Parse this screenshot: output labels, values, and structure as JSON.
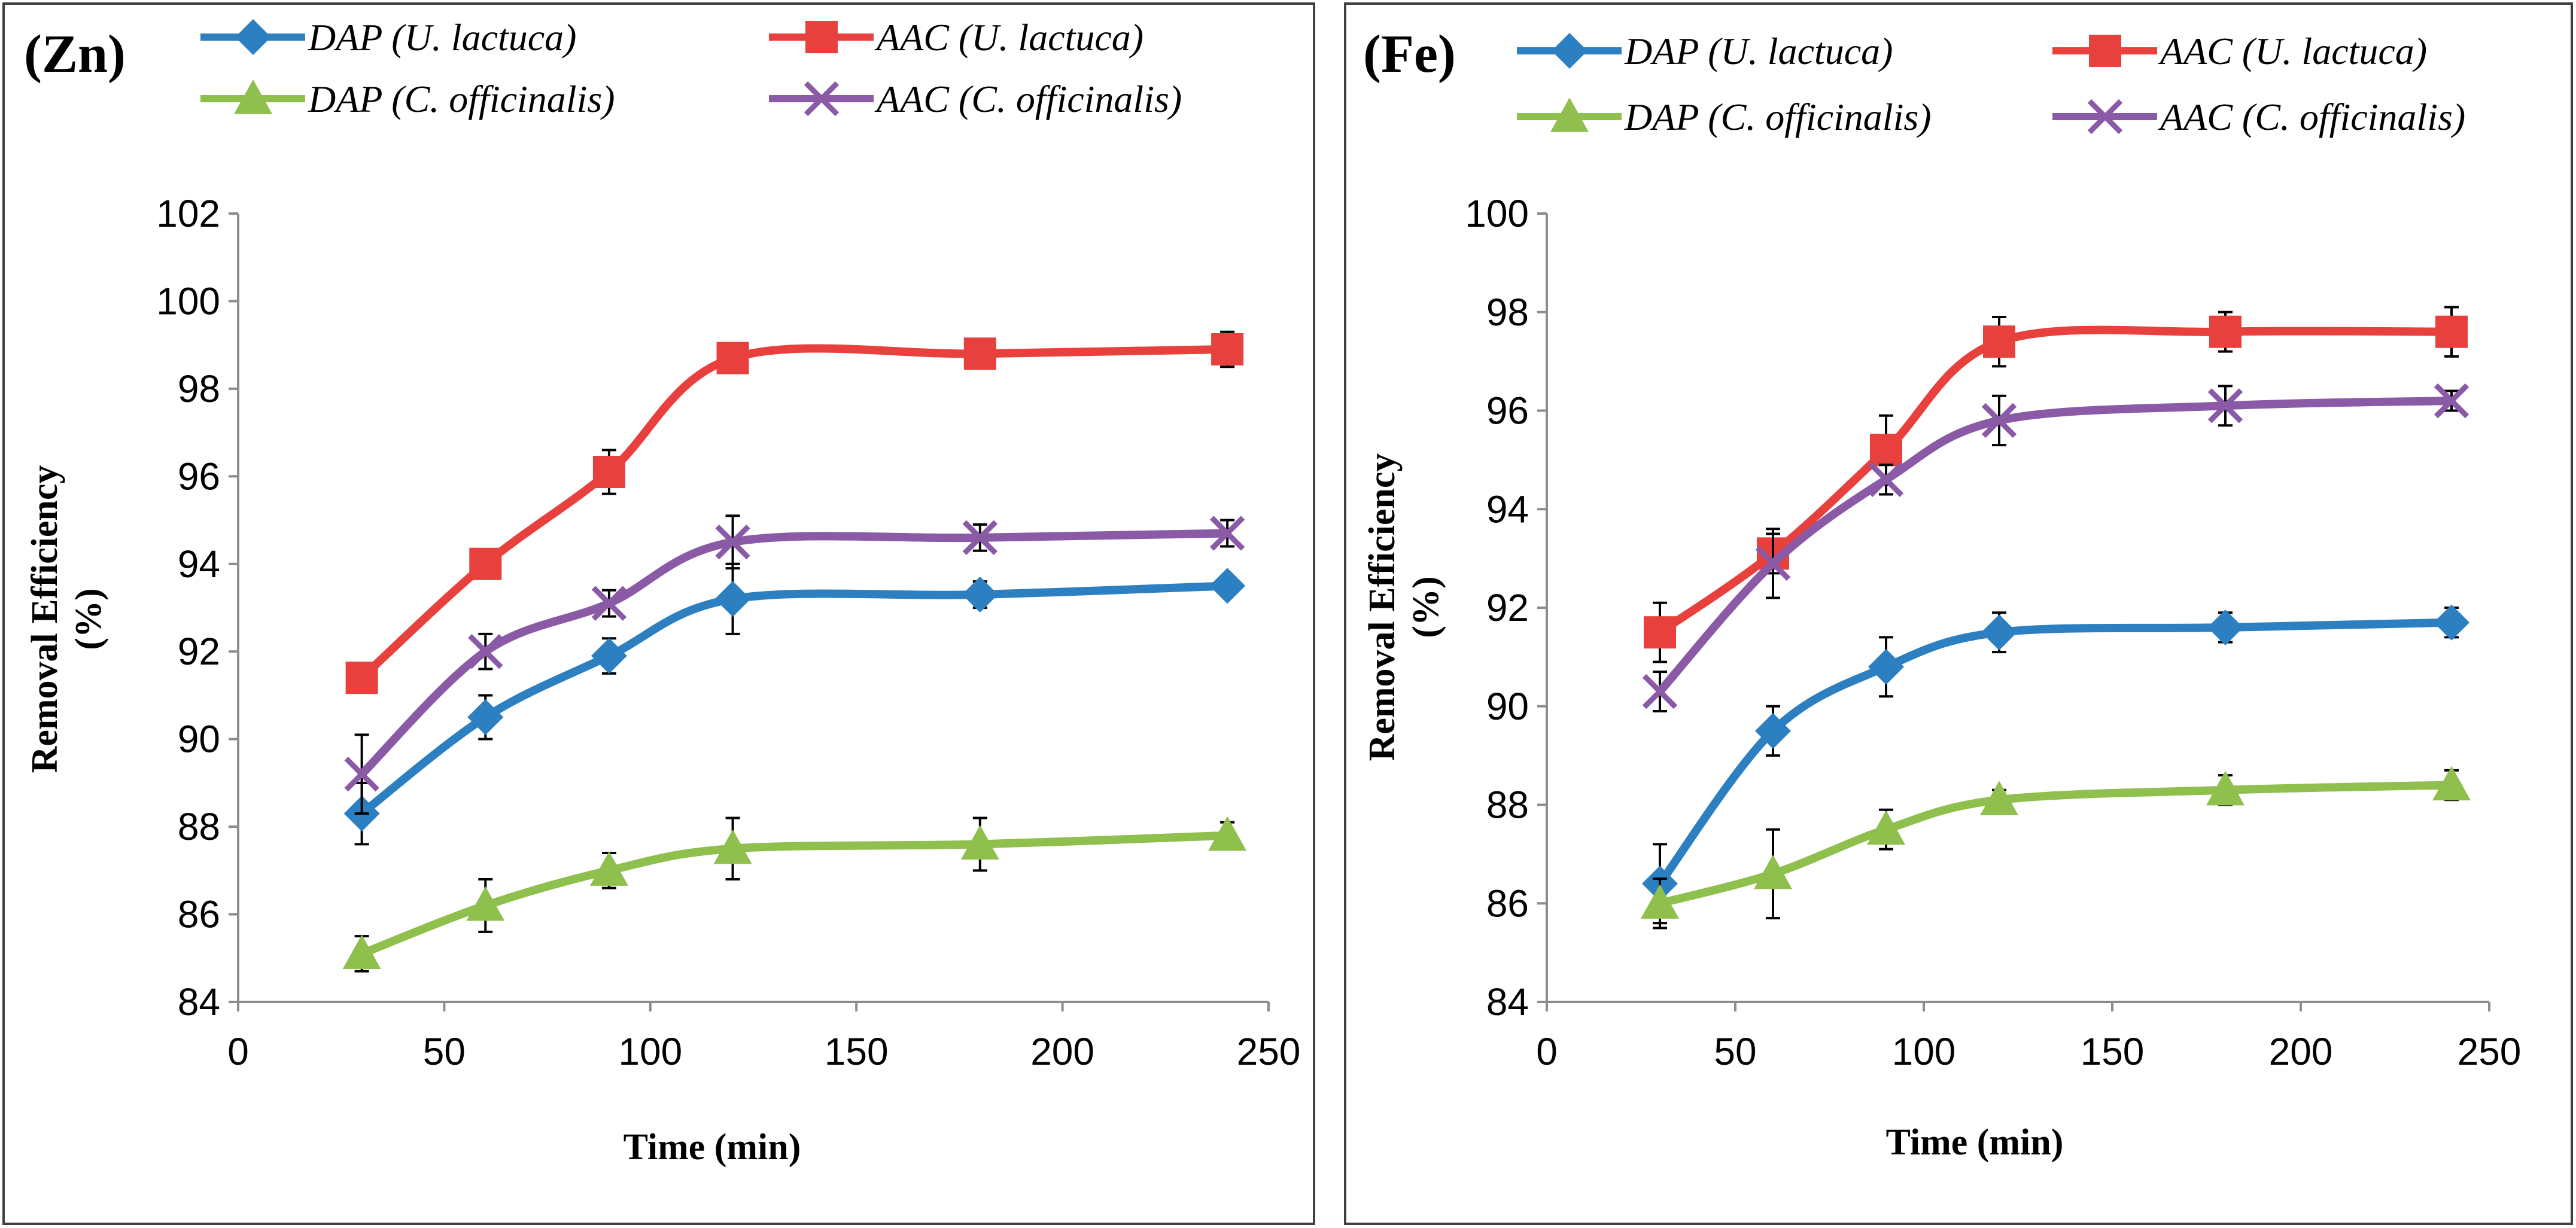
{
  "chart_data": [
    {
      "type": "line",
      "panel_label": "(Zn)",
      "xlabel": "Time (min)",
      "ylabel_line1": "Removal  Efficiency",
      "ylabel_line2": "(%)",
      "xlim": [
        0,
        250
      ],
      "ylim": [
        84,
        102
      ],
      "xticks": [
        0,
        50,
        100,
        150,
        200,
        250
      ],
      "yticks": [
        84,
        86,
        88,
        90,
        92,
        94,
        96,
        98,
        100,
        102
      ],
      "x": [
        30,
        60,
        90,
        120,
        180,
        240
      ],
      "series": [
        {
          "name": "DAP (U. lactuca)",
          "color": "#2c7fc0",
          "marker": "diamond",
          "values": [
            88.3,
            90.5,
            91.9,
            93.2,
            93.3,
            93.5
          ],
          "errors": [
            0.7,
            0.5,
            0.4,
            0.8,
            0.3,
            0.2
          ]
        },
        {
          "name": "AAC (U. lactuca)",
          "color": "#e8403c",
          "marker": "square",
          "values": [
            91.4,
            94.0,
            96.1,
            98.7,
            98.8,
            98.9
          ],
          "errors": [
            0.2,
            0.2,
            0.5,
            0.2,
            0.2,
            0.4
          ]
        },
        {
          "name": "DAP (C. officinalis)",
          "color": "#8fbf4c",
          "marker": "triangle",
          "values": [
            85.1,
            86.2,
            87.0,
            87.5,
            87.6,
            87.8
          ],
          "errors": [
            0.4,
            0.6,
            0.4,
            0.7,
            0.6,
            0.3
          ]
        },
        {
          "name": "AAC (C. officinalis)",
          "color": "#8a5aa6",
          "marker": "x",
          "values": [
            89.2,
            92.0,
            93.1,
            94.5,
            94.6,
            94.7
          ],
          "errors": [
            0.9,
            0.4,
            0.3,
            0.6,
            0.3,
            0.3
          ]
        }
      ]
    },
    {
      "type": "line",
      "panel_label": "(Fe)",
      "xlabel": "Time (min)",
      "ylabel_line1": "Removal  Efficiency",
      "ylabel_line2": "(%)",
      "xlim": [
        0,
        250
      ],
      "ylim": [
        84,
        100
      ],
      "xticks": [
        0,
        50,
        100,
        150,
        200,
        250
      ],
      "yticks": [
        84,
        86,
        88,
        90,
        92,
        94,
        96,
        98,
        100
      ],
      "x": [
        30,
        60,
        90,
        120,
        180,
        240
      ],
      "series": [
        {
          "name": "DAP (U. lactuca)",
          "color": "#2c7fc0",
          "marker": "diamond",
          "values": [
            86.4,
            89.5,
            90.8,
            91.5,
            91.6,
            91.7
          ],
          "errors": [
            0.8,
            0.5,
            0.6,
            0.4,
            0.3,
            0.3
          ]
        },
        {
          "name": "AAC (U. lactuca)",
          "color": "#e8403c",
          "marker": "square",
          "values": [
            91.5,
            93.1,
            95.2,
            97.4,
            97.6,
            97.6
          ],
          "errors": [
            0.6,
            0.4,
            0.7,
            0.5,
            0.4,
            0.5
          ]
        },
        {
          "name": "DAP (C. officinalis)",
          "color": "#8fbf4c",
          "marker": "triangle",
          "values": [
            86.0,
            86.6,
            87.5,
            88.1,
            88.3,
            88.4
          ],
          "errors": [
            0.5,
            0.9,
            0.4,
            0.2,
            0.3,
            0.3
          ]
        },
        {
          "name": "AAC (C. officinalis)",
          "color": "#8a5aa6",
          "marker": "x",
          "values": [
            90.3,
            92.9,
            94.6,
            95.8,
            96.1,
            96.2
          ],
          "errors": [
            0.4,
            0.7,
            0.3,
            0.5,
            0.4,
            0.2
          ]
        }
      ]
    }
  ]
}
